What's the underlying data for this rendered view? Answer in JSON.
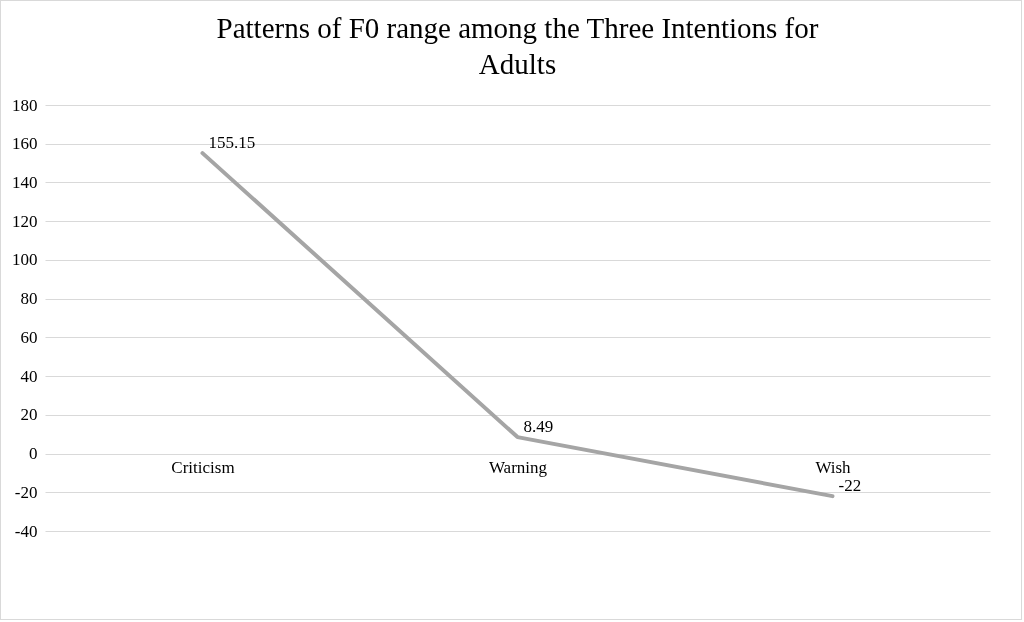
{
  "chart_data": {
    "type": "line",
    "title": "Patterns of F0 range among the Three Intentions for Adults",
    "categories": [
      "Criticism",
      "Warning",
      "Wish"
    ],
    "series": [
      {
        "color": "#a5a5a5",
        "values": [
          155.15,
          8.49,
          -22
        ]
      }
    ],
    "ylim": [
      -40,
      180
    ],
    "yticks": [
      -40,
      -20,
      0,
      20,
      40,
      60,
      80,
      100,
      120,
      140,
      160,
      180
    ],
    "grid": "y",
    "data_labels": true,
    "marker": "none",
    "line_style": "solid"
  }
}
